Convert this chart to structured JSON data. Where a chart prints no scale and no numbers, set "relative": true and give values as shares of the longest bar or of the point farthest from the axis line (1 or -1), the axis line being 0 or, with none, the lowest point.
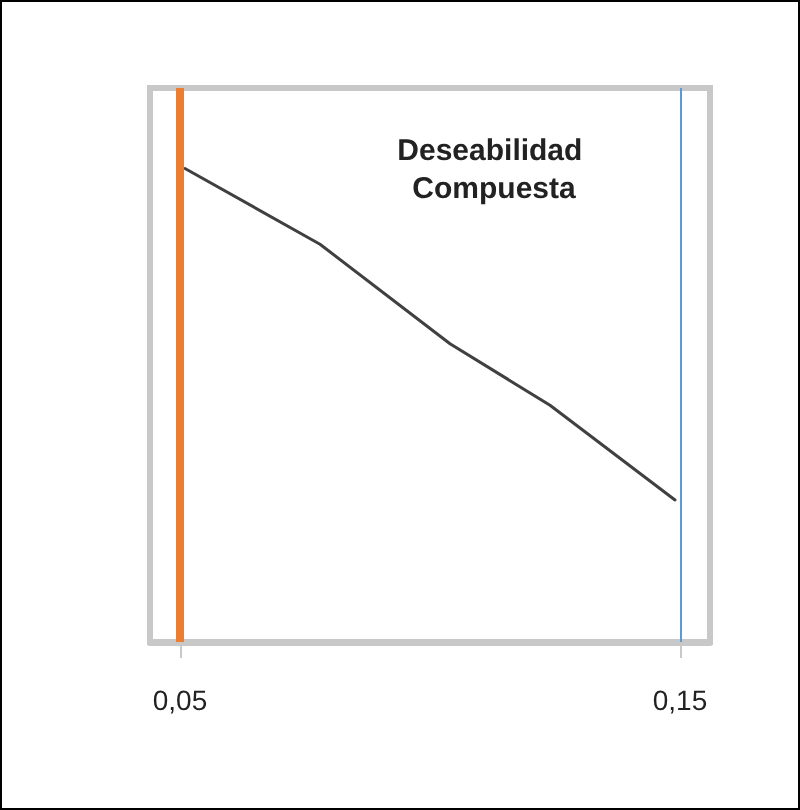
{
  "chart_data": {
    "type": "line",
    "title": "Deseabilidad Compuesta",
    "relative": true,
    "x": [
      0.051,
      0.078,
      0.104,
      0.124,
      0.149
    ],
    "series": [
      {
        "color": "#404040",
        "values": [
          1,
          0.84,
          0.63,
          0.5,
          0.3
        ]
      }
    ],
    "xlim": [
      0.044,
      0.156
    ],
    "xticks": [
      {
        "value": 0.05,
        "label": "0,05"
      },
      {
        "value": 0.15,
        "label": "0,15"
      }
    ],
    "ref_lines": [
      {
        "axis": "x",
        "value": 0.05,
        "color": "#ed7d31"
      },
      {
        "axis": "x",
        "value": 0.15,
        "color": "#5b9bd5"
      }
    ],
    "marker": "none",
    "line_style": "solid"
  }
}
